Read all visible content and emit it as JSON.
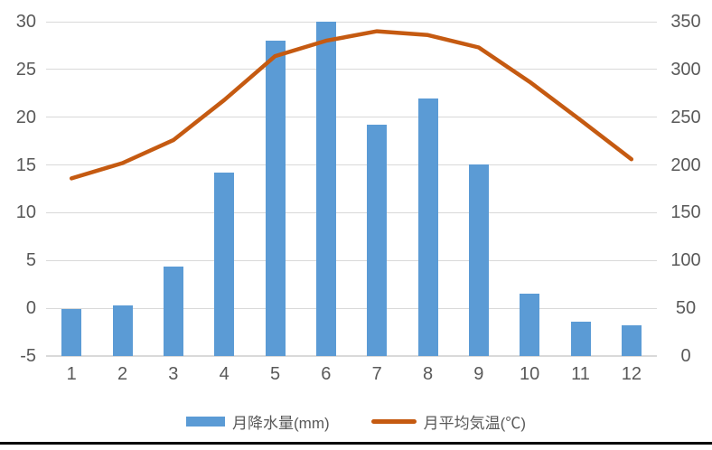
{
  "chart_data": {
    "type": "bar+line combo",
    "categories": [
      "1",
      "2",
      "3",
      "4",
      "5",
      "6",
      "7",
      "8",
      "9",
      "10",
      "11",
      "12"
    ],
    "series": [
      {
        "name": "月降水量(mm)",
        "type": "bar",
        "axis": "right",
        "color": "#5B9BD5",
        "values": [
          49,
          53,
          94,
          192,
          330,
          350,
          242,
          270,
          201,
          65,
          36,
          32
        ]
      },
      {
        "name": "月平均気温(℃)",
        "type": "line",
        "axis": "left",
        "color": "#C55A11",
        "values": [
          13.6,
          15.2,
          17.6,
          21.8,
          26.4,
          28.0,
          29.0,
          28.6,
          27.3,
          23.7,
          19.7,
          15.6
        ]
      }
    ],
    "left_axis": {
      "min": -5,
      "max": 30,
      "step": 5,
      "ticks": [
        "-5",
        "0",
        "5",
        "10",
        "15",
        "20",
        "25",
        "30"
      ]
    },
    "right_axis": {
      "min": 0,
      "max": 350,
      "step": 50,
      "ticks": [
        "0",
        "50",
        "100",
        "150",
        "200",
        "250",
        "300",
        "350"
      ]
    },
    "title": "",
    "xlabel": "",
    "ylabel": "",
    "grid": true,
    "legend_position": "bottom",
    "colors": {
      "bar": "#5B9BD5",
      "line": "#C55A11",
      "grid": "#D9D9D9",
      "axis_line": "#D9D9D9",
      "text": "#595959",
      "background": "#FFFFFF",
      "bottom_rule": "#000000"
    }
  },
  "legend": {
    "bar_label": "月降水量(mm)",
    "line_label": "月平均気温(℃)"
  }
}
